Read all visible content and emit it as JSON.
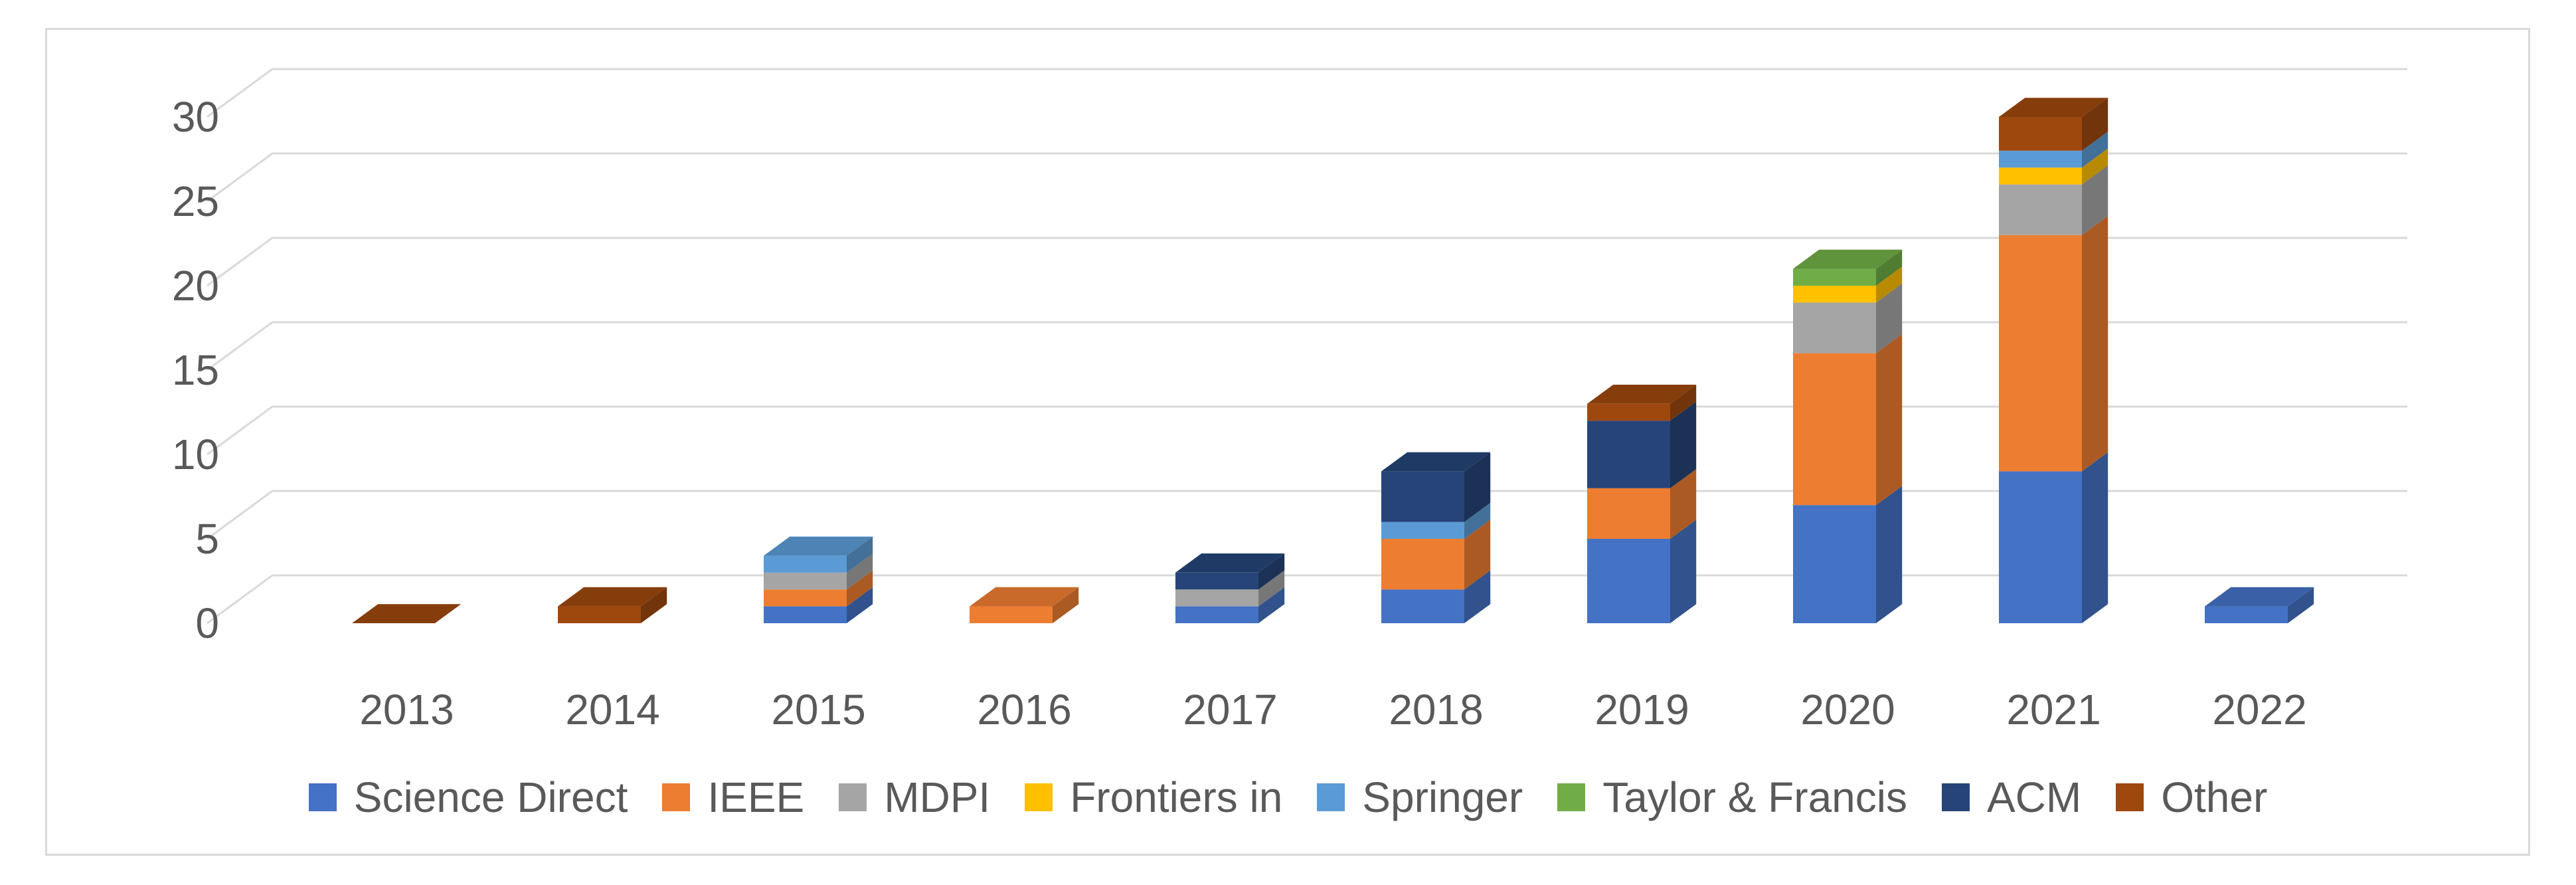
{
  "chart_data": {
    "type": "bar",
    "stacked": true,
    "style": "3d-stacked-column",
    "title": "",
    "xlabel": "",
    "ylabel": "",
    "ylim": [
      0,
      30
    ],
    "yticks": [
      0,
      5,
      10,
      15,
      20,
      25,
      30
    ],
    "grid": true,
    "legend_position": "bottom",
    "categories": [
      "2013",
      "2014",
      "2015",
      "2016",
      "2017",
      "2018",
      "2019",
      "2020",
      "2021",
      "2022"
    ],
    "series": [
      {
        "name": "Science Direct",
        "color": "#4472C4",
        "values": [
          0,
          0,
          1,
          0,
          1,
          2,
          5,
          7,
          9,
          1
        ]
      },
      {
        "name": "IEEE",
        "color": "#ED7D31",
        "values": [
          0,
          0,
          1,
          1,
          0,
          3,
          3,
          9,
          14,
          0
        ]
      },
      {
        "name": "MDPI",
        "color": "#A5A5A5",
        "values": [
          0,
          0,
          1,
          0,
          1,
          0,
          0,
          3,
          3,
          0
        ]
      },
      {
        "name": "Frontiers in",
        "color": "#FFC000",
        "values": [
          0,
          0,
          0,
          0,
          0,
          0,
          0,
          1,
          1,
          0
        ]
      },
      {
        "name": "Springer",
        "color": "#5B9BD5",
        "values": [
          0,
          0,
          1,
          0,
          0,
          1,
          0,
          0,
          1,
          0
        ]
      },
      {
        "name": "Taylor & Francis",
        "color": "#70AD47",
        "values": [
          0,
          0,
          0,
          0,
          0,
          0,
          0,
          1,
          0,
          0
        ]
      },
      {
        "name": "ACM",
        "color": "#264478",
        "values": [
          0,
          0,
          0,
          0,
          1,
          3,
          4,
          0,
          0,
          0
        ]
      },
      {
        "name": "Other",
        "color": "#9E480E",
        "values": [
          0,
          1,
          0,
          0,
          0,
          0,
          1,
          0,
          2,
          0
        ]
      }
    ]
  }
}
